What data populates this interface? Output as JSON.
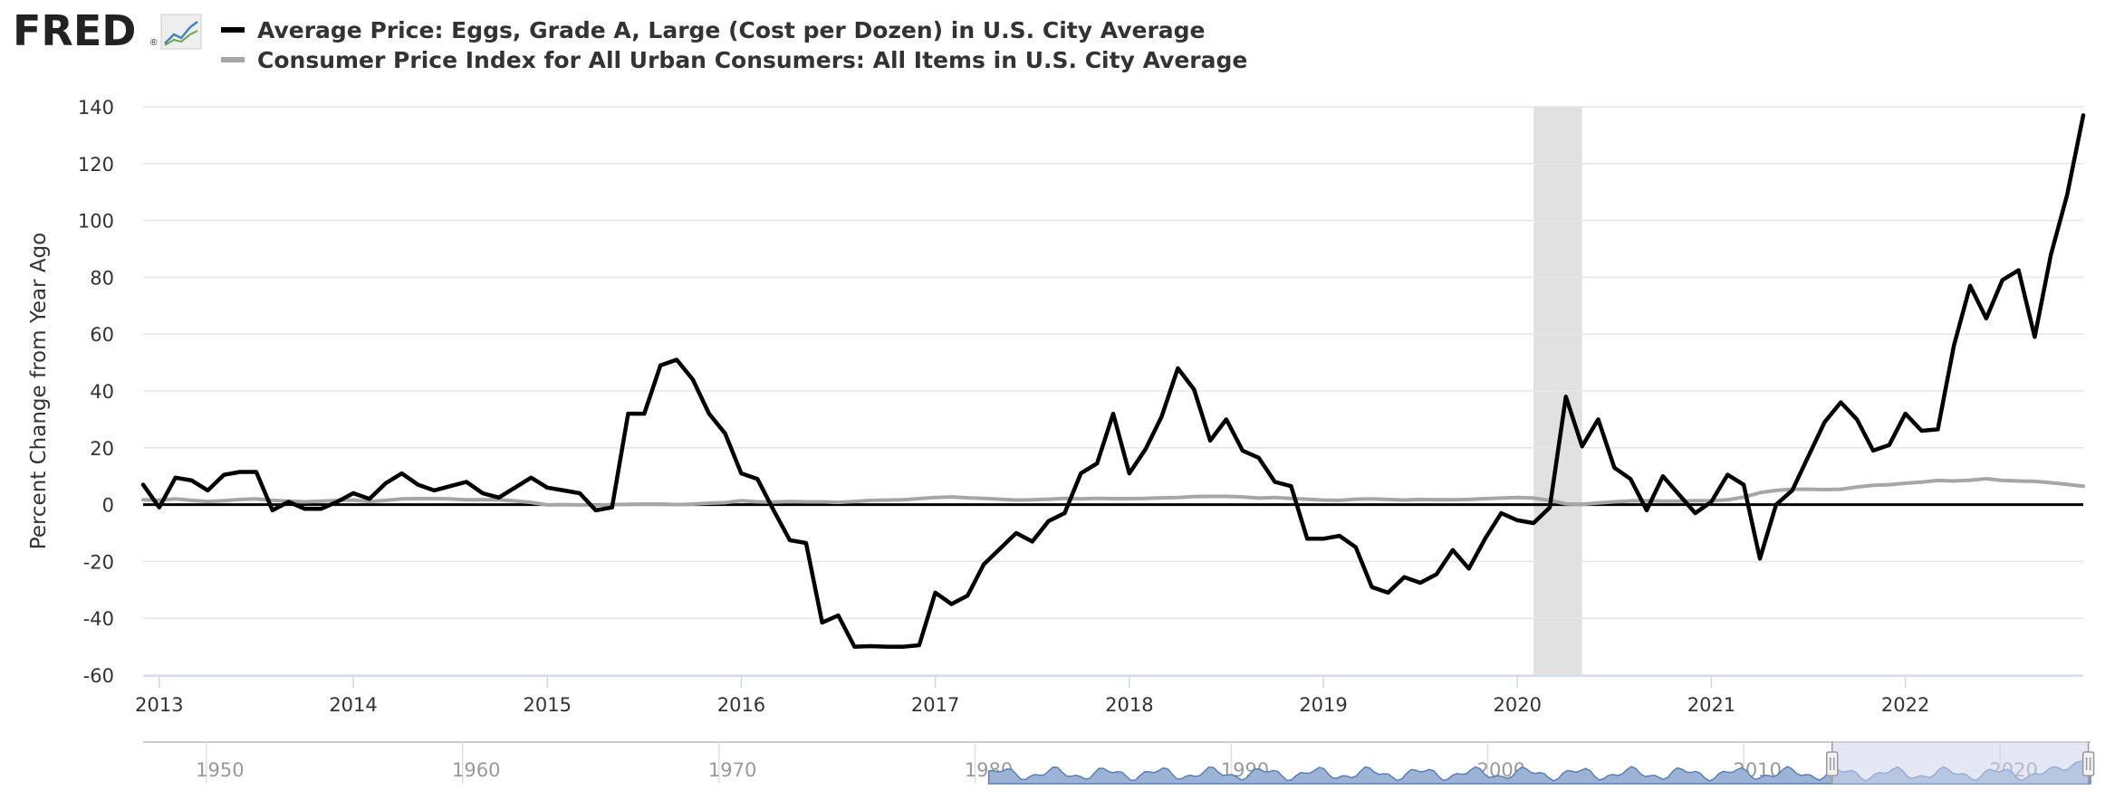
{
  "logo": {
    "text": "FRED",
    "registered": "®"
  },
  "colors": {
    "series1": "#000000",
    "series2": "#a6a6a6",
    "recession": "#e1e1e1",
    "grid": "#e6e6e6",
    "navigator_fill": "#9db3d6",
    "navigator_line": "#5a7fb8",
    "navigator_mask": "#ccd6eb"
  },
  "chart_data": {
    "type": "line",
    "title": "",
    "xlabel": "",
    "ylabel": "Percent Change from Year Ago",
    "ylim": [
      -60,
      140
    ],
    "y_ticks": [
      -60,
      -40,
      -20,
      0,
      20,
      40,
      60,
      80,
      100,
      120,
      140
    ],
    "y_tick_labels": [
      "-60",
      "-40",
      "-20",
      "0",
      "20",
      "40",
      "60",
      "80",
      "100",
      "120",
      "140"
    ],
    "x_range": [
      "2012-12",
      "2022-12"
    ],
    "x_tick_labels": [
      "2013",
      "2014",
      "2015",
      "2016",
      "2017",
      "2018",
      "2019",
      "2020",
      "2021",
      "2022"
    ],
    "x_tick_years": [
      2013,
      2014,
      2015,
      2016,
      2017,
      2018,
      2019,
      2020,
      2021,
      2022
    ],
    "grid": true,
    "recession_shading": [
      [
        "2020-02",
        "2020-04"
      ]
    ],
    "series": [
      {
        "name": "Average Price: Eggs, Grade A, Large (Cost per Dozen) in U.S. City Average",
        "start": "2012-12",
        "frequency": "monthly",
        "values": [
          7,
          -1,
          9.5,
          8.5,
          5,
          10.5,
          11.5,
          11.5,
          -2,
          1,
          -1.5,
          -1.5,
          1,
          4,
          2,
          7.5,
          11,
          7,
          5,
          6.5,
          8,
          4,
          2.5,
          6,
          9.5,
          6,
          5,
          4,
          -2,
          -1,
          32,
          32,
          49,
          51,
          44,
          32,
          25,
          11,
          9,
          -2,
          -12.5,
          -13.5,
          -41.5,
          -39,
          -50,
          -49.8,
          -50,
          -50,
          -49.5,
          -31,
          -35,
          -32,
          -21,
          -15.5,
          -10,
          -13,
          -5.8,
          -3,
          11,
          14.5,
          32,
          11,
          19.5,
          31,
          48,
          40.5,
          22.5,
          30,
          19,
          16.5,
          8,
          6.5,
          -12,
          -12,
          -11,
          -15,
          -29,
          -31,
          -25.5,
          -27.5,
          -24.5,
          -16,
          -22.5,
          -12,
          -3,
          -5.5,
          -6.5,
          -1,
          38,
          20.5,
          30,
          13,
          9,
          -2,
          10,
          3.5,
          -3,
          1,
          10.5,
          7,
          -19,
          0,
          5,
          17,
          29,
          36,
          30,
          19,
          21,
          32,
          26,
          26.5,
          56,
          77,
          65.5,
          79,
          82.5,
          59,
          88,
          109,
          137
        ],
        "label": "Average Price: Eggs, Grade A, Large (Cost per Dozen) in U.S. City Average"
      },
      {
        "name": "Consumer Price Index for All Urban Consumers: All Items in U.S. City Average",
        "start": "2012-12",
        "frequency": "monthly",
        "values": [
          1.7,
          1.6,
          2.0,
          1.5,
          1.1,
          1.4,
          1.8,
          2.0,
          1.5,
          1.2,
          1.0,
          1.2,
          1.5,
          1.6,
          1.1,
          1.5,
          2.0,
          2.1,
          2.1,
          2.0,
          1.7,
          1.7,
          1.7,
          1.3,
          0.8,
          -0.1,
          0.0,
          -0.1,
          -0.2,
          0.0,
          0.1,
          0.2,
          0.2,
          0.0,
          0.2,
          0.5,
          0.7,
          1.4,
          1.0,
          0.9,
          1.1,
          1.0,
          1.0,
          0.8,
          1.1,
          1.5,
          1.6,
          1.7,
          2.1,
          2.5,
          2.7,
          2.4,
          2.2,
          1.9,
          1.6,
          1.7,
          1.9,
          2.2,
          2.0,
          2.2,
          2.1,
          2.1,
          2.2,
          2.4,
          2.5,
          2.8,
          2.9,
          2.9,
          2.7,
          2.3,
          2.5,
          2.2,
          1.9,
          1.6,
          1.5,
          1.9,
          2.0,
          1.8,
          1.6,
          1.8,
          1.7,
          1.7,
          1.8,
          2.1,
          2.3,
          2.5,
          2.3,
          1.5,
          0.3,
          0.1,
          0.6,
          1.0,
          1.3,
          1.4,
          1.2,
          1.2,
          1.4,
          1.4,
          1.7,
          2.6,
          4.2,
          5.0,
          5.4,
          5.4,
          5.3,
          5.4,
          6.2,
          6.8,
          7.0,
          7.5,
          7.9,
          8.5,
          8.3,
          8.6,
          9.1,
          8.5,
          8.3,
          8.2,
          7.7,
          7.1,
          6.5
        ],
        "label": "Consumer Price Index for All Urban Consumers: All Items in U.S. City Average"
      }
    ],
    "navigator": {
      "tick_labels": [
        "1950",
        "1960",
        "1970",
        "1980",
        "1990",
        "2000",
        "2010",
        "2020"
      ],
      "tick_years": [
        1950,
        1960,
        1970,
        1980,
        1990,
        2000,
        2010,
        2020
      ],
      "range": [
        1947,
        2023
      ],
      "data_start": 1980,
      "selection": [
        "2012-12",
        "2022-12"
      ]
    }
  }
}
